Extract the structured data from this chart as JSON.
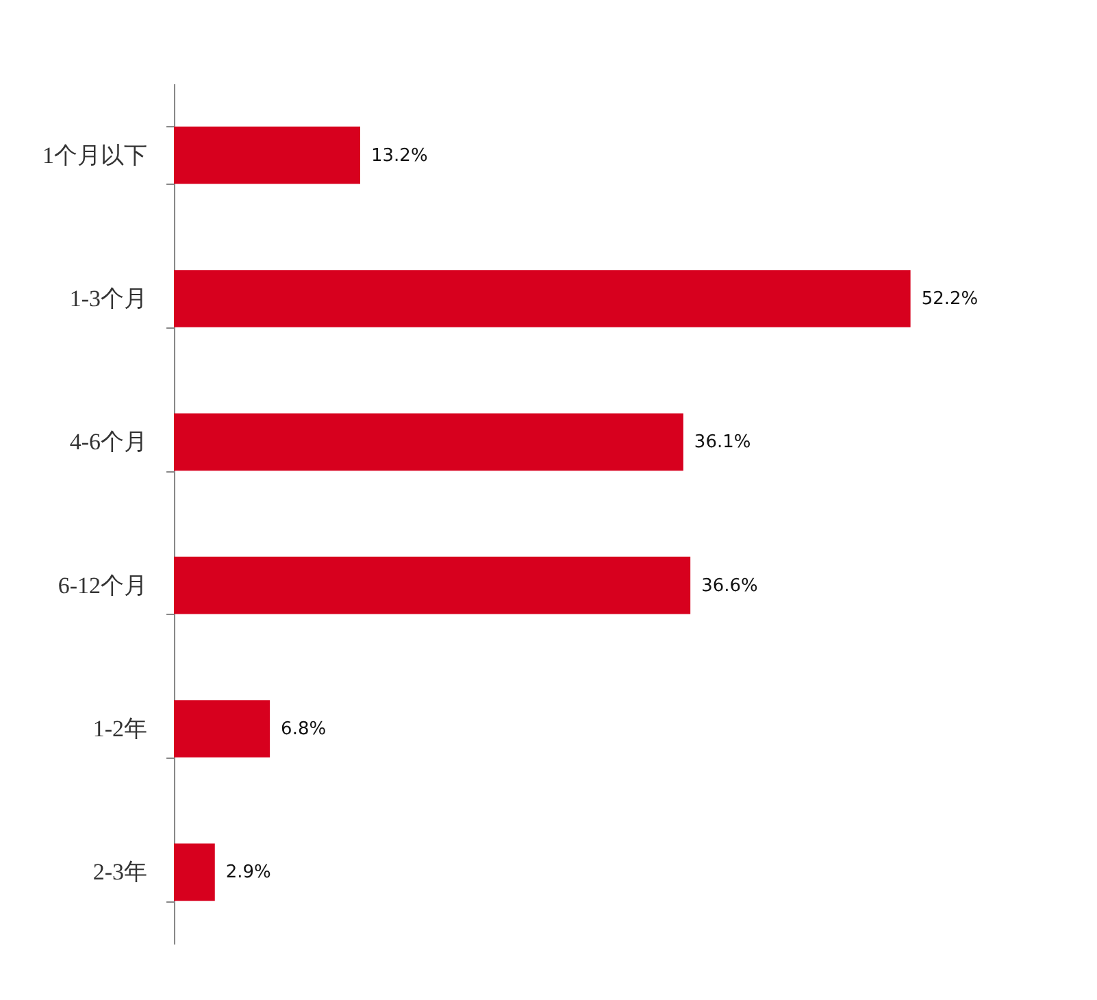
{
  "chart_data": {
    "type": "bar",
    "orientation": "horizontal",
    "categories": [
      "1个月以下",
      "1-3个月",
      "4-6个月",
      "6-12个月",
      "1-2年",
      "2-3年"
    ],
    "values": [
      13.2,
      52.2,
      36.1,
      36.6,
      6.8,
      2.9
    ],
    "value_labels": [
      "13.2%",
      "52.2%",
      "36.1%",
      "36.6%",
      "6.8%",
      "2.9%"
    ],
    "color": "#d7001e"
  }
}
